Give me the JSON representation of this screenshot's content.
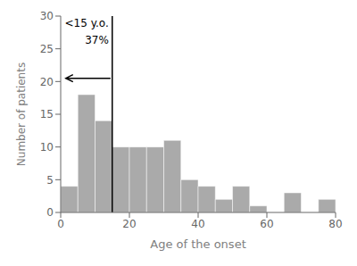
{
  "chart_data": {
    "type": "histogram",
    "xlabel": "Age of the onset",
    "ylabel": "Number of patients",
    "bins": [
      0,
      5,
      10,
      15,
      20,
      25,
      30,
      35,
      40,
      45,
      50,
      55,
      60,
      65,
      70,
      75,
      80
    ],
    "values": [
      4,
      18,
      14,
      10,
      10,
      10,
      11,
      5,
      4,
      2,
      4,
      1,
      0,
      3,
      0,
      2
    ],
    "color": "#aaaaaa",
    "xlim": [
      0,
      80
    ],
    "xticks": [
      0,
      20,
      40,
      60,
      80
    ],
    "ylim": [
      0,
      30
    ],
    "yticks": [
      0,
      5,
      10,
      15,
      20,
      25,
      30
    ],
    "vlines": [
      15
    ],
    "arrows": [
      {
        "from": [
          14.5,
          20.5
        ],
        "to": [
          1.5,
          20.5
        ]
      }
    ],
    "annotations": [
      {
        "text": "<15 y.o.",
        "x": 14.5,
        "y": 29.5
      },
      {
        "text": "37%",
        "x": 14.5,
        "y": 27.0
      }
    ]
  }
}
